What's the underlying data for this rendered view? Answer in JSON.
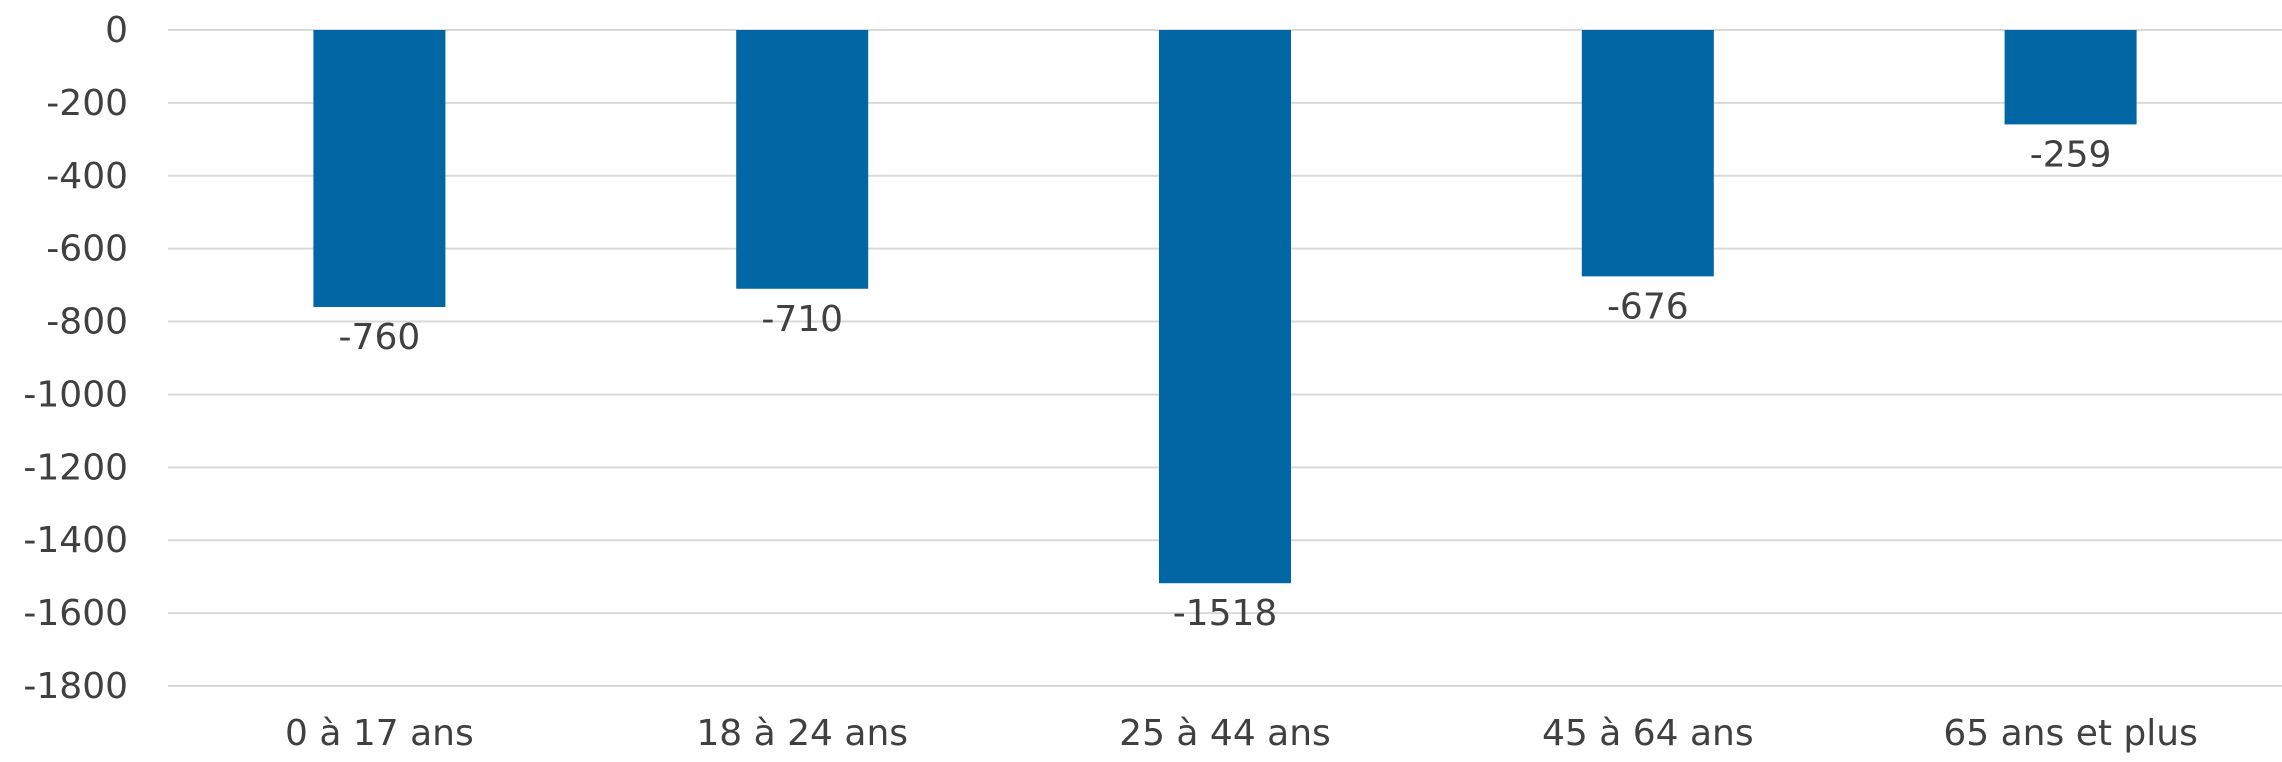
{
  "chart_data": {
    "type": "bar",
    "title": "",
    "xlabel": "",
    "ylabel": "",
    "categories": [
      "0 à 17 ans",
      "18 à 24 ans",
      "25 à 44 ans",
      "45 à 64 ans",
      "65 ans et plus"
    ],
    "values": [
      -760,
      -710,
      -1518,
      -676,
      -259
    ],
    "data_labels": [
      "-760",
      "-710",
      "-1518",
      "-676",
      "-259"
    ],
    "ylim": [
      -1800,
      0
    ],
    "yticks": [
      0,
      -200,
      -400,
      -600,
      -800,
      -1000,
      -1200,
      -1400,
      -1600,
      -1800
    ],
    "ytick_labels": [
      "0",
      "-200",
      "-400",
      "-600",
      "-800",
      "-1000",
      "-1200",
      "-1400",
      "-1600",
      "-1800"
    ],
    "grid": true,
    "legend": "none",
    "colors": {
      "bar": "#0066A4",
      "grid": "#D9D9D9",
      "text": "#404040"
    }
  }
}
